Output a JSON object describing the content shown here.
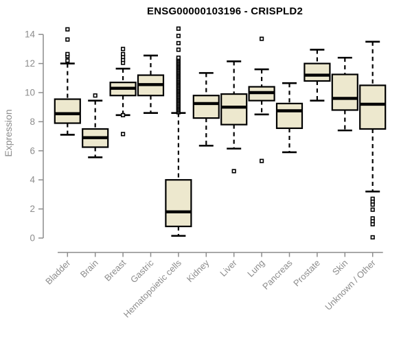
{
  "title": "ENSG00000103196 - CRISPLD2",
  "y_axis_label": "Expression",
  "colors": {
    "box_fill": "#ede8ce",
    "box_stroke": "#000000",
    "median": "#000000",
    "whisker": "#000000",
    "outlier": "#000000",
    "axis": "#8c8c8c",
    "tick_label": "#8c8c8c",
    "title": "#000000",
    "background": "#ffffff"
  },
  "chart_data": {
    "type": "boxplot",
    "title": "ENSG00000103196 - CRISPLD2",
    "xlabel": "",
    "ylabel": "Expression",
    "ylim": [
      0,
      14
    ],
    "y_ticks": [
      0,
      2,
      4,
      6,
      8,
      10,
      12,
      14
    ],
    "grid": false,
    "legend": false,
    "categories": [
      "Bladder",
      "Brain",
      "Breast",
      "Gastric",
      "Hematopoietic cells",
      "Kidney",
      "Liver",
      "Lung",
      "Pancreas",
      "Prostate",
      "Skin",
      "Unknown / Other"
    ],
    "boxes": [
      {
        "name": "Bladder",
        "whisker_low": 7.1,
        "q1": 7.9,
        "median": 8.55,
        "q3": 9.55,
        "whisker_high": 12.0,
        "outliers": [
          12.2,
          12.5,
          12.65,
          13.65,
          14.35
        ]
      },
      {
        "name": "Brain",
        "whisker_low": 5.55,
        "q1": 6.25,
        "median": 6.9,
        "q3": 7.5,
        "whisker_high": 9.45,
        "outliers": [
          9.8
        ]
      },
      {
        "name": "Breast",
        "whisker_low": 8.45,
        "q1": 9.8,
        "median": 10.3,
        "q3": 10.7,
        "whisker_high": 11.65,
        "outliers": [
          7.15,
          8.45,
          12.05,
          12.25,
          12.45,
          12.65,
          13.0
        ]
      },
      {
        "name": "Gastric",
        "whisker_low": 8.6,
        "q1": 9.8,
        "median": 10.55,
        "q3": 11.2,
        "whisker_high": 12.55,
        "outliers": []
      },
      {
        "name": "Hematopoietic cells",
        "whisker_low": 0.15,
        "q1": 0.8,
        "median": 1.8,
        "q3": 4.0,
        "whisker_high": 8.6,
        "outliers": [
          12.95,
          13.4,
          13.9,
          14.4
        ],
        "dense_outliers": {
          "min": 8.65,
          "max": 12.4,
          "count": 44
        }
      },
      {
        "name": "Kidney",
        "whisker_low": 6.35,
        "q1": 8.25,
        "median": 9.25,
        "q3": 9.8,
        "whisker_high": 11.35,
        "outliers": []
      },
      {
        "name": "Liver",
        "whisker_low": 6.15,
        "q1": 7.8,
        "median": 9.0,
        "q3": 9.9,
        "whisker_high": 12.15,
        "outliers": [
          4.6
        ]
      },
      {
        "name": "Lung",
        "whisker_low": 8.5,
        "q1": 9.45,
        "median": 10.0,
        "q3": 10.4,
        "whisker_high": 11.6,
        "outliers": [
          5.3,
          13.7
        ]
      },
      {
        "name": "Pancreas",
        "whisker_low": 5.9,
        "q1": 7.55,
        "median": 8.75,
        "q3": 9.25,
        "whisker_high": 10.65,
        "outliers": []
      },
      {
        "name": "Prostate",
        "whisker_low": 9.45,
        "q1": 10.8,
        "median": 11.2,
        "q3": 12.0,
        "whisker_high": 12.95,
        "outliers": []
      },
      {
        "name": "Skin",
        "whisker_low": 7.4,
        "q1": 8.8,
        "median": 9.6,
        "q3": 11.25,
        "whisker_high": 12.4,
        "outliers": []
      },
      {
        "name": "Unknown / Other",
        "whisker_low": 3.2,
        "q1": 7.5,
        "median": 9.2,
        "q3": 10.5,
        "whisker_high": 13.5,
        "outliers": [
          2.7,
          2.5,
          2.3,
          1.95,
          1.35,
          1.15,
          0.95,
          0.05
        ]
      }
    ]
  }
}
